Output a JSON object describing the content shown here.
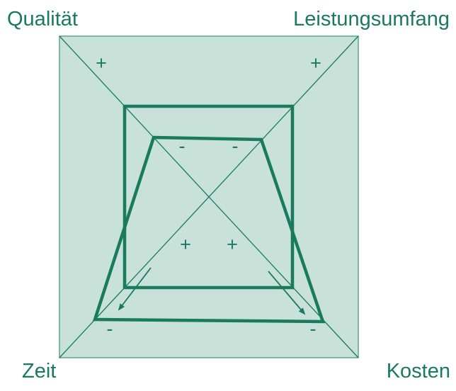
{
  "corners": {
    "top_left": "Qualität",
    "top_right": "Leistungsumfang",
    "bottom_left": "Zeit",
    "bottom_right": "Kosten"
  },
  "signs": {
    "top_left_outer": "+",
    "top_right_outer": "+",
    "inner_top_left": "-",
    "inner_top_right": "-",
    "center_left": "+",
    "center_right": "+",
    "bottom_left_outer": "-",
    "bottom_right_outer": "-"
  },
  "colors": {
    "primary": "#1a7a5e",
    "fill": "#c8e2da",
    "fill_stroke": "#5aa58c"
  }
}
